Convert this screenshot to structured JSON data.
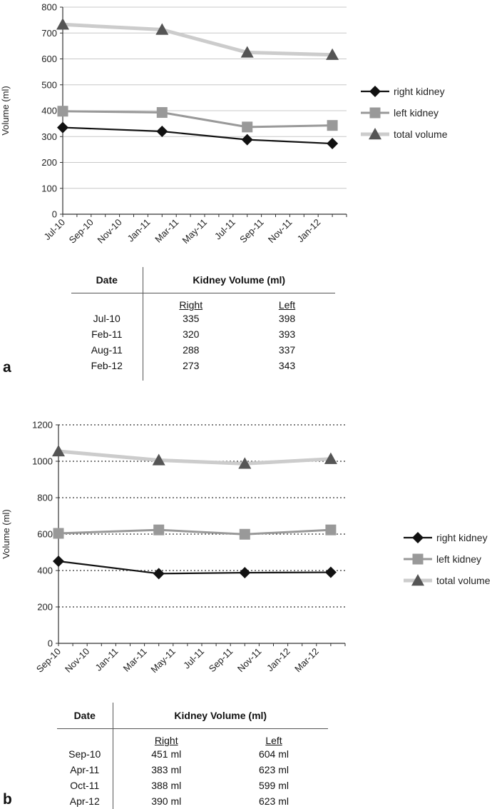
{
  "panels": [
    {
      "label": "a",
      "chart_data": {
        "type": "line",
        "title": "",
        "xlabel": "",
        "ylabel": "Volume (ml)",
        "ylim": [
          0,
          800
        ],
        "yticks": [
          0,
          100,
          200,
          300,
          400,
          500,
          600,
          700,
          800
        ],
        "xticks": [
          "Jul-10",
          "Sep-10",
          "Nov-10",
          "Jan-11",
          "Mar-11",
          "May-11",
          "Jul-11",
          "Sep-11",
          "Nov-11",
          "Jan-12"
        ],
        "x_range": [
          "Jul-10",
          "Mar-12"
        ],
        "grid": "solid",
        "legend_placement": "right",
        "series": [
          {
            "name": "right kidney",
            "color": "#111111",
            "marker": "diamond",
            "points": [
              {
                "x": "Jul-10",
                "y": 335
              },
              {
                "x": "Feb-11",
                "y": 320
              },
              {
                "x": "Aug-11",
                "y": 288
              },
              {
                "x": "Feb-12",
                "y": 273
              }
            ]
          },
          {
            "name": "left kidney",
            "color": "#999999",
            "marker": "square",
            "points": [
              {
                "x": "Jul-10",
                "y": 398
              },
              {
                "x": "Feb-11",
                "y": 393
              },
              {
                "x": "Aug-11",
                "y": 337
              },
              {
                "x": "Feb-12",
                "y": 343
              }
            ]
          },
          {
            "name": "total volume",
            "color": "#cccccc",
            "marker": "triangle",
            "marker_color": "#555555",
            "points": [
              {
                "x": "Jul-10",
                "y": 733
              },
              {
                "x": "Feb-11",
                "y": 713
              },
              {
                "x": "Aug-11",
                "y": 625
              },
              {
                "x": "Feb-12",
                "y": 616
              }
            ]
          }
        ]
      },
      "table": {
        "date_header": "Date",
        "volume_header": "Kidney Volume (ml)",
        "right_header": "Right",
        "left_header": "Left",
        "rows": [
          {
            "date": "Jul-10",
            "right": "335",
            "left": "398"
          },
          {
            "date": "Feb-11",
            "right": "320",
            "left": "393"
          },
          {
            "date": "Aug-11",
            "right": "288",
            "left": "337"
          },
          {
            "date": "Feb-12",
            "right": "273",
            "left": "343"
          }
        ]
      }
    },
    {
      "label": "b",
      "chart_data": {
        "type": "line",
        "title": "",
        "xlabel": "",
        "ylabel": "Volume (ml)",
        "ylim": [
          0,
          1200
        ],
        "yticks": [
          0,
          200,
          400,
          600,
          800,
          1000,
          1200
        ],
        "xticks": [
          "Sep-10",
          "Nov-10",
          "Jan-11",
          "Mar-11",
          "May-11",
          "Jul-11",
          "Sep-11",
          "Nov-11",
          "Jan-12",
          "Mar-12"
        ],
        "x_range": [
          "Sep-10",
          "May-12"
        ],
        "grid": "dotted",
        "legend_placement": "right",
        "series": [
          {
            "name": "right kidney",
            "color": "#111111",
            "marker": "diamond",
            "points": [
              {
                "x": "Sep-10",
                "y": 451
              },
              {
                "x": "Apr-11",
                "y": 383
              },
              {
                "x": "Oct-11",
                "y": 388
              },
              {
                "x": "Apr-12",
                "y": 390
              }
            ]
          },
          {
            "name": "left kidney",
            "color": "#999999",
            "marker": "square",
            "points": [
              {
                "x": "Sep-10",
                "y": 604
              },
              {
                "x": "Apr-11",
                "y": 623
              },
              {
                "x": "Oct-11",
                "y": 599
              },
              {
                "x": "Apr-12",
                "y": 623
              }
            ]
          },
          {
            "name": "total volume",
            "color": "#cccccc",
            "marker": "triangle",
            "marker_color": "#555555",
            "points": [
              {
                "x": "Sep-10",
                "y": 1055
              },
              {
                "x": "Apr-11",
                "y": 1006
              },
              {
                "x": "Oct-11",
                "y": 987
              },
              {
                "x": "Apr-12",
                "y": 1013
              }
            ]
          }
        ]
      },
      "table": {
        "date_header": "Date",
        "volume_header": "Kidney Volume (ml)",
        "right_header": "Right",
        "left_header": "Left",
        "rows": [
          {
            "date": "Sep-10",
            "right": "451 ml",
            "left": "604 ml"
          },
          {
            "date": "Apr-11",
            "right": "383 ml",
            "left": "623 ml"
          },
          {
            "date": "Oct-11",
            "right": "388 ml",
            "left": "599 ml"
          },
          {
            "date": "Apr-12",
            "right": "390 ml",
            "left": "623 ml"
          }
        ]
      }
    }
  ]
}
